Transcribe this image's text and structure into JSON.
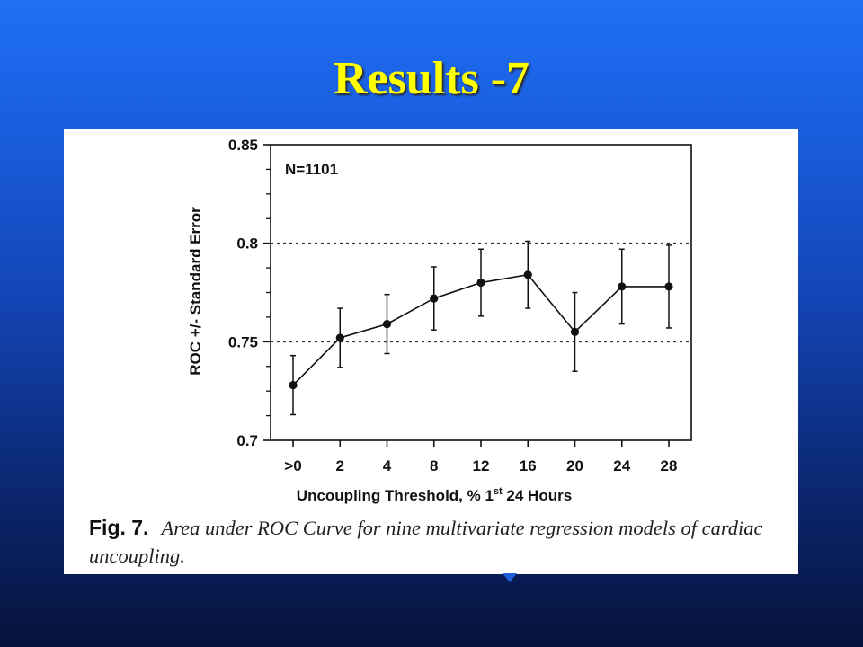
{
  "slide": {
    "title": "Results -7"
  },
  "figure": {
    "caption_label": "Fig. 7.",
    "caption_text": "Area under ROC Curve for nine multivariate regression models of cardiac uncoupling."
  },
  "chart_data": {
    "type": "line",
    "annotation": "N=1101",
    "xlabel": "Uncoupling Threshold, % 1st 24 Hours",
    "xlabel_parts": [
      "Uncoupling Threshold, % 1",
      "st",
      " 24 Hours"
    ],
    "ylabel": "ROC +/- Standard Error",
    "categories": [
      ">0",
      "2",
      "4",
      "8",
      "12",
      "16",
      "20",
      "24",
      "28"
    ],
    "series": [
      {
        "values": [
          0.728,
          0.752,
          0.759,
          0.772,
          0.78,
          0.784,
          0.755,
          0.778,
          0.778
        ],
        "errors": [
          0.015,
          0.015,
          0.015,
          0.016,
          0.017,
          0.017,
          0.02,
          0.019,
          0.021
        ]
      }
    ],
    "ylim": [
      0.7,
      0.85
    ],
    "yticks": [
      0.7,
      0.75,
      0.8,
      0.85
    ],
    "ytick_labels": [
      "0.7",
      "0.75",
      "0.8",
      "0.85"
    ],
    "reference_lines": [
      0.75,
      0.8
    ],
    "grid": false,
    "colors": {
      "line": "#111111",
      "reference": "#333333"
    }
  }
}
